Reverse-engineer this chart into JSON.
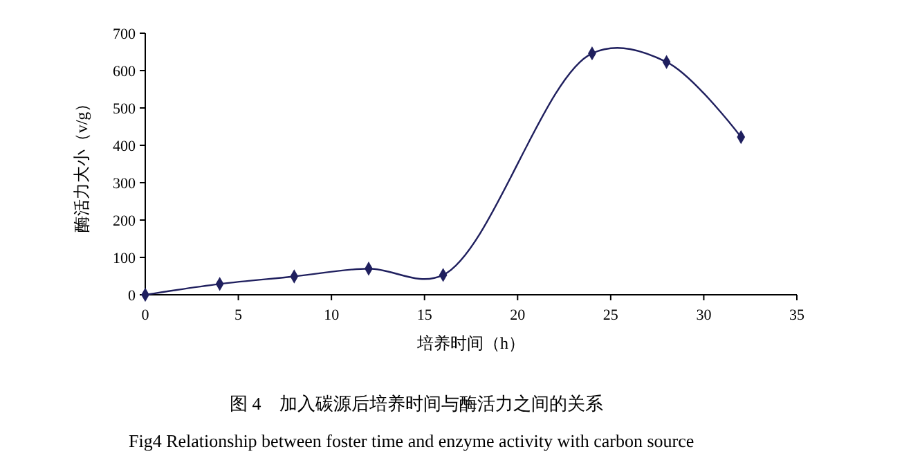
{
  "chart_data": {
    "type": "line",
    "xlabel": "培养时间（h）",
    "ylabel": "酶活力大小（v/g）",
    "annotations": [
      "图 4　加入碳源后培养时间与酶活力之间的关系",
      "Fig4 Relationship between foster time and enzyme activity with carbon source"
    ],
    "x": [
      0,
      4,
      8,
      12,
      16,
      24,
      28,
      32
    ],
    "series": [
      {
        "color": "#1f1f5e",
        "values": [
          0,
          29,
          49,
          70,
          53,
          646,
          623,
          422
        ]
      }
    ],
    "xlim": [
      0,
      35
    ],
    "xticks": [
      0,
      5,
      10,
      15,
      20,
      25,
      30,
      35
    ],
    "ylim": [
      0,
      700
    ],
    "yticks": [
      0,
      100,
      200,
      300,
      400,
      500,
      600,
      700
    ],
    "grid": false,
    "marker": "diamond",
    "line_style": "solid"
  }
}
